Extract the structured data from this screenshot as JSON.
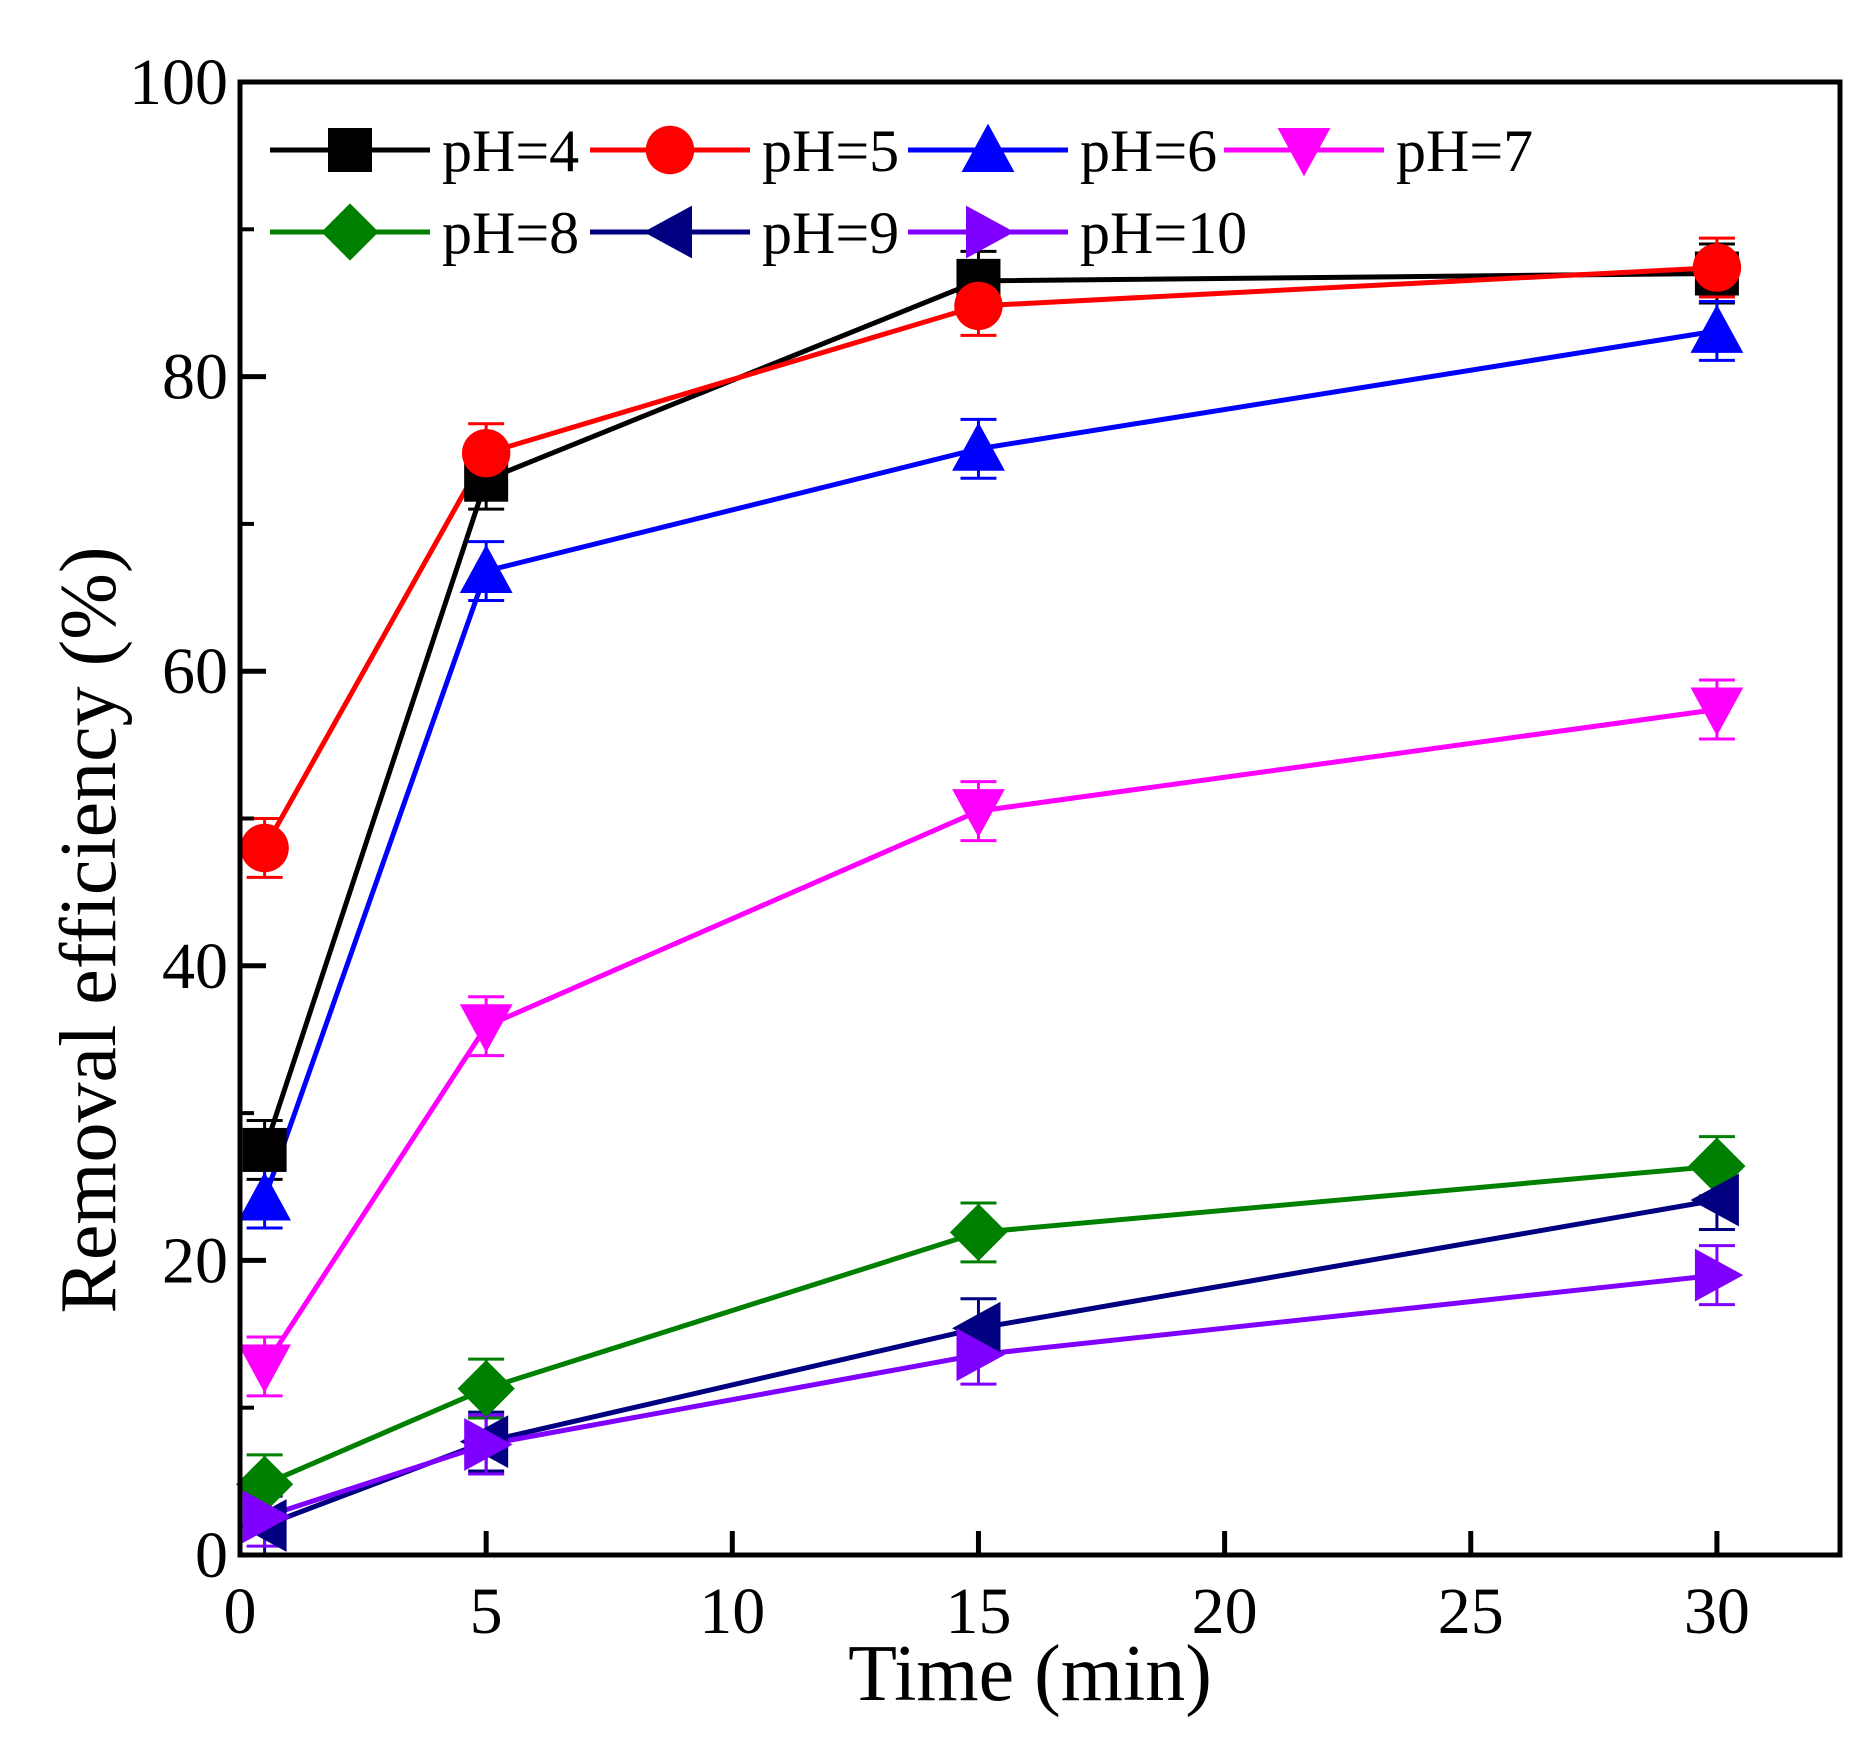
{
  "chart_data": {
    "type": "line",
    "title": "",
    "xlabel": "Time (min)",
    "ylabel": "Removal efficiency (%)",
    "xlim": [
      0,
      32.5
    ],
    "ylim": [
      0,
      100
    ],
    "x_ticks": [
      0,
      5,
      10,
      15,
      20,
      25,
      30
    ],
    "x_tick_labels": [
      "0",
      "5",
      "10",
      "15",
      "20",
      "25",
      "30"
    ],
    "y_ticks": [
      0,
      20,
      40,
      60,
      80,
      100
    ],
    "y_tick_labels": [
      "0",
      "20",
      "40",
      "60",
      "80",
      "100"
    ],
    "y_minor_ticks": [
      10,
      30,
      50,
      70,
      90
    ],
    "grid": false,
    "legend_position": "top-left",
    "x": [
      0.5,
      5,
      15,
      30
    ],
    "series": [
      {
        "name": "pH=4",
        "color": "#000000",
        "marker": "square",
        "values": [
          27.5,
          73.0,
          86.5,
          87.0
        ],
        "errors": [
          2.0,
          2.0,
          2.0,
          2.0
        ]
      },
      {
        "name": "pH=5",
        "color": "#ff0000",
        "marker": "circle",
        "values": [
          48.0,
          74.8,
          84.8,
          87.4
        ],
        "errors": [
          2.0,
          2.0,
          2.0,
          2.0
        ]
      },
      {
        "name": "pH=6",
        "color": "#0000ff",
        "marker": "triangle-up",
        "values": [
          24.2,
          66.8,
          75.1,
          83.1
        ],
        "errors": [
          2.0,
          2.0,
          2.0,
          2.0
        ]
      },
      {
        "name": "pH=7",
        "color": "#ff00ff",
        "marker": "triangle-down",
        "values": [
          12.8,
          35.9,
          50.5,
          57.4
        ],
        "errors": [
          2.0,
          2.0,
          2.0,
          2.0
        ]
      },
      {
        "name": "pH=8",
        "color": "#008000",
        "marker": "diamond",
        "values": [
          4.8,
          11.3,
          21.9,
          26.4
        ],
        "errors": [
          2.0,
          2.0,
          2.0,
          2.0
        ]
      },
      {
        "name": "pH=9",
        "color": "#000080",
        "marker": "triangle-left",
        "values": [
          2.0,
          7.7,
          15.4,
          24.1
        ],
        "errors": [
          2.0,
          2.0,
          2.0,
          2.0
        ]
      },
      {
        "name": "pH=10",
        "color": "#8000ff",
        "marker": "triangle-right",
        "values": [
          2.6,
          7.5,
          13.6,
          19.0
        ],
        "errors": [
          2.0,
          2.0,
          2.0,
          2.0
        ]
      }
    ]
  }
}
